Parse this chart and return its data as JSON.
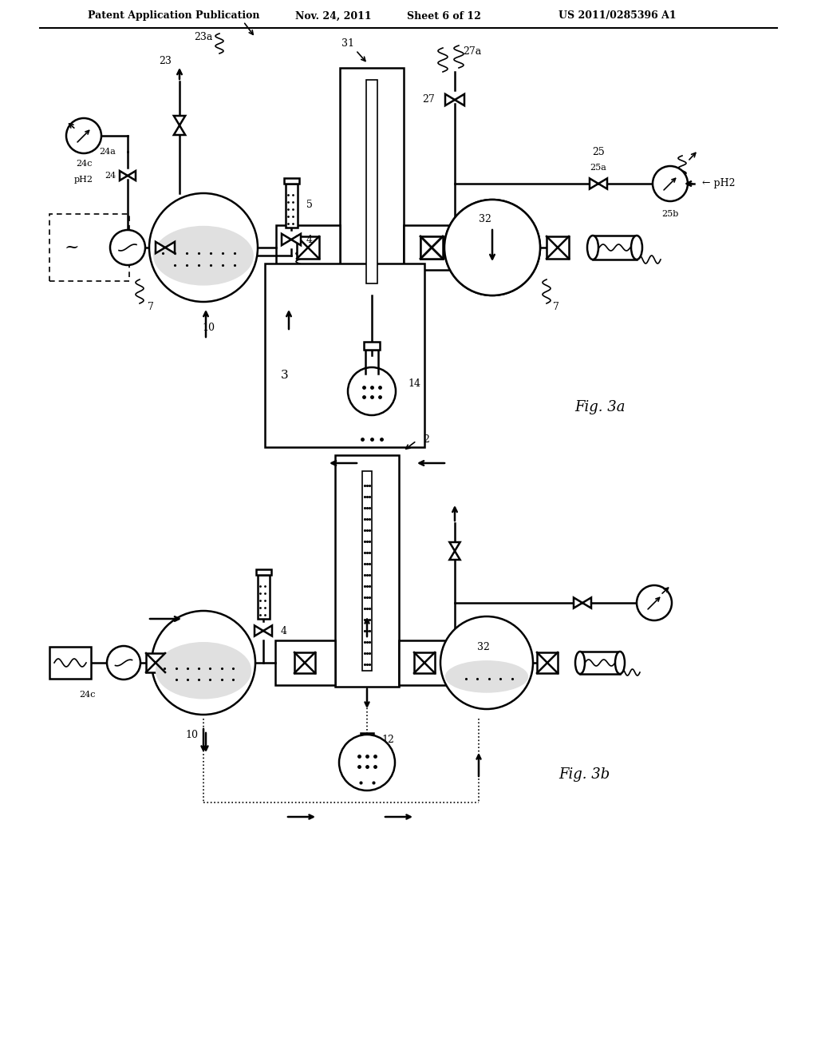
{
  "background": "#ffffff",
  "header_text": "Patent Application Publication",
  "header_date": "Nov. 24, 2011",
  "header_sheet": "Sheet 6 of 12",
  "header_patent": "US 2011/0285396 A1",
  "fig3a_label": "Fig. 3a",
  "fig3b_label": "Fig. 3b"
}
